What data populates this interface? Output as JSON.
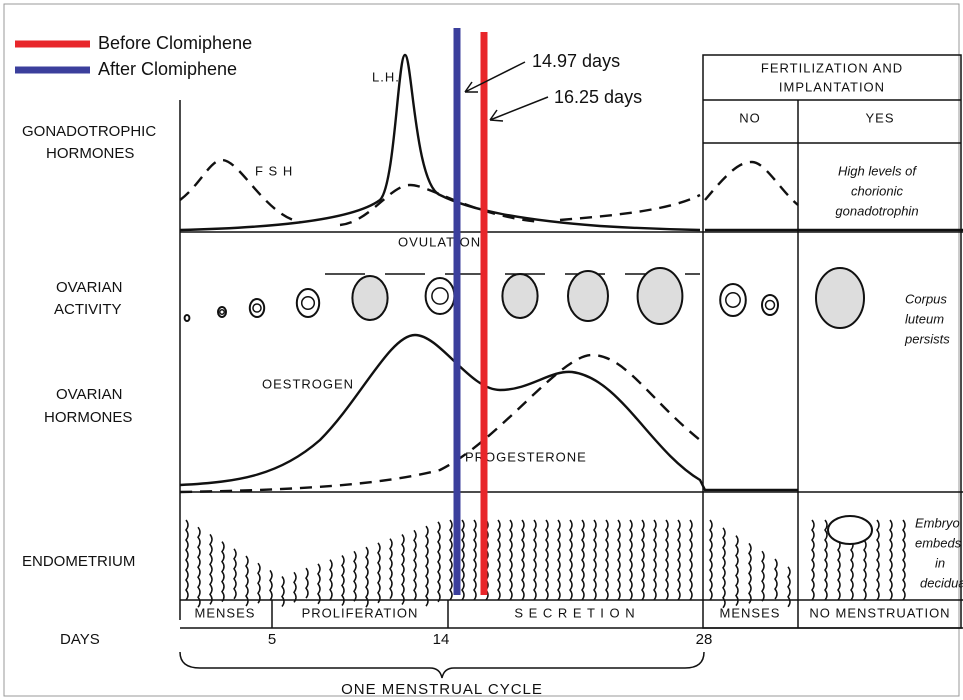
{
  "legend": [
    {
      "label": "Before Clomiphene",
      "color": "#e8262a"
    },
    {
      "label": "After Clomiphene",
      "color": "#3b3f9c"
    }
  ],
  "annotations": {
    "after": "14.97 days",
    "before": "16.25 days"
  },
  "row_labels": {
    "gonadotrophic": [
      "GONADOTROPHIC",
      "HORMONES"
    ],
    "ovarian_activity": [
      "OVARIAN",
      "ACTIVITY"
    ],
    "ovarian_hormones": [
      "OVARIAN",
      "HORMONES"
    ],
    "endometrium": "ENDOMETRIUM",
    "days": "DAYS"
  },
  "curve_labels": {
    "lh": "L.H.",
    "fsh": "F S H",
    "ovulation": "OVULATION",
    "oestrogen": "OESTROGEN",
    "progesterone": "PROGESTERONE"
  },
  "phases": {
    "menses": "MENSES",
    "proliferation": "PROLIFERATION",
    "secretion": "S E C R E T I O N"
  },
  "day_ticks": [
    "5",
    "14",
    "28"
  ],
  "cycle_label": "ONE MENSTRUAL CYCLE",
  "panel": {
    "title": [
      "FERTILIZATION AND",
      "IMPLANTATION"
    ],
    "no": "NO",
    "yes": "YES",
    "hcg": [
      "High levels of",
      "chorionic",
      "gonadotrophin"
    ],
    "corpus": [
      "Corpus",
      "luteum",
      "persists"
    ],
    "embryo": [
      "Embryo",
      "embeds",
      "in",
      "decidua"
    ],
    "menses": "MENSES",
    "no_menstruation": "NO MENSTRUATION"
  }
}
